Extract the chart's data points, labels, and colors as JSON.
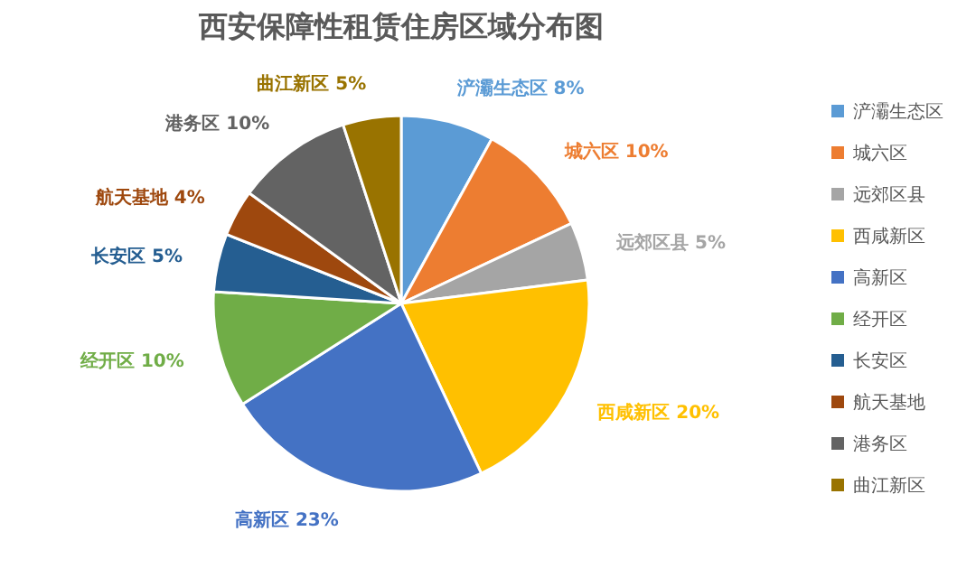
{
  "chart_data": {
    "type": "pie",
    "title": "西安保障性租赁住房区域分布图",
    "categories": [
      "浐灞生态区",
      "城六区",
      "远郊区县",
      "西咸新区",
      "高新区",
      "经开区",
      "长安区",
      "航天基地",
      "港务区",
      "曲江新区"
    ],
    "values": [
      8,
      10,
      5,
      20,
      23,
      10,
      5,
      4,
      10,
      5
    ],
    "value_labels": [
      "8%",
      "10%",
      "5%",
      "20%",
      "23%",
      "10%",
      "5%",
      "4%",
      "10%",
      "5%"
    ],
    "colors": [
      "#5b9bd5",
      "#ed7d31",
      "#a5a5a5",
      "#ffc000",
      "#4472c4",
      "#70ad47",
      "#255e91",
      "#9e480e",
      "#636363",
      "#997300"
    ],
    "legend": "right"
  }
}
